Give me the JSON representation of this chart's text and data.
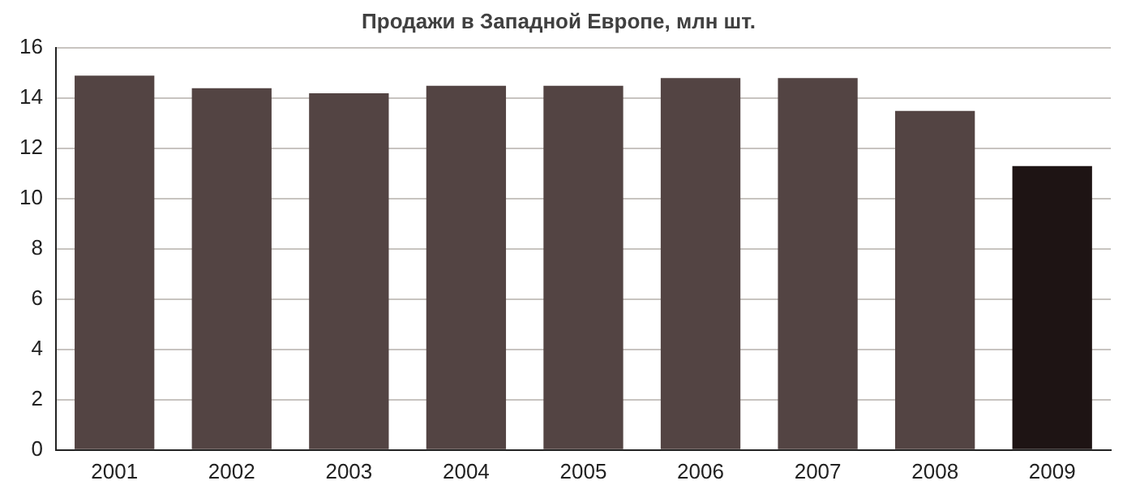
{
  "chart_data": {
    "type": "bar",
    "title": "Продажи в Западной Европе, млн шт.",
    "categories": [
      "2001",
      "2002",
      "2003",
      "2004",
      "2005",
      "2006",
      "2007",
      "2008",
      "2009"
    ],
    "values": [
      14.9,
      14.4,
      14.2,
      14.5,
      14.5,
      14.8,
      14.8,
      13.5,
      11.3
    ],
    "colors": [
      "#534443",
      "#534443",
      "#534443",
      "#534443",
      "#534443",
      "#534443",
      "#534443",
      "#534443",
      "#1e1414"
    ],
    "ylim": [
      0,
      16
    ],
    "yticks": [
      0,
      2,
      4,
      6,
      8,
      10,
      12,
      14,
      16
    ],
    "grid": "y",
    "legend": false
  }
}
